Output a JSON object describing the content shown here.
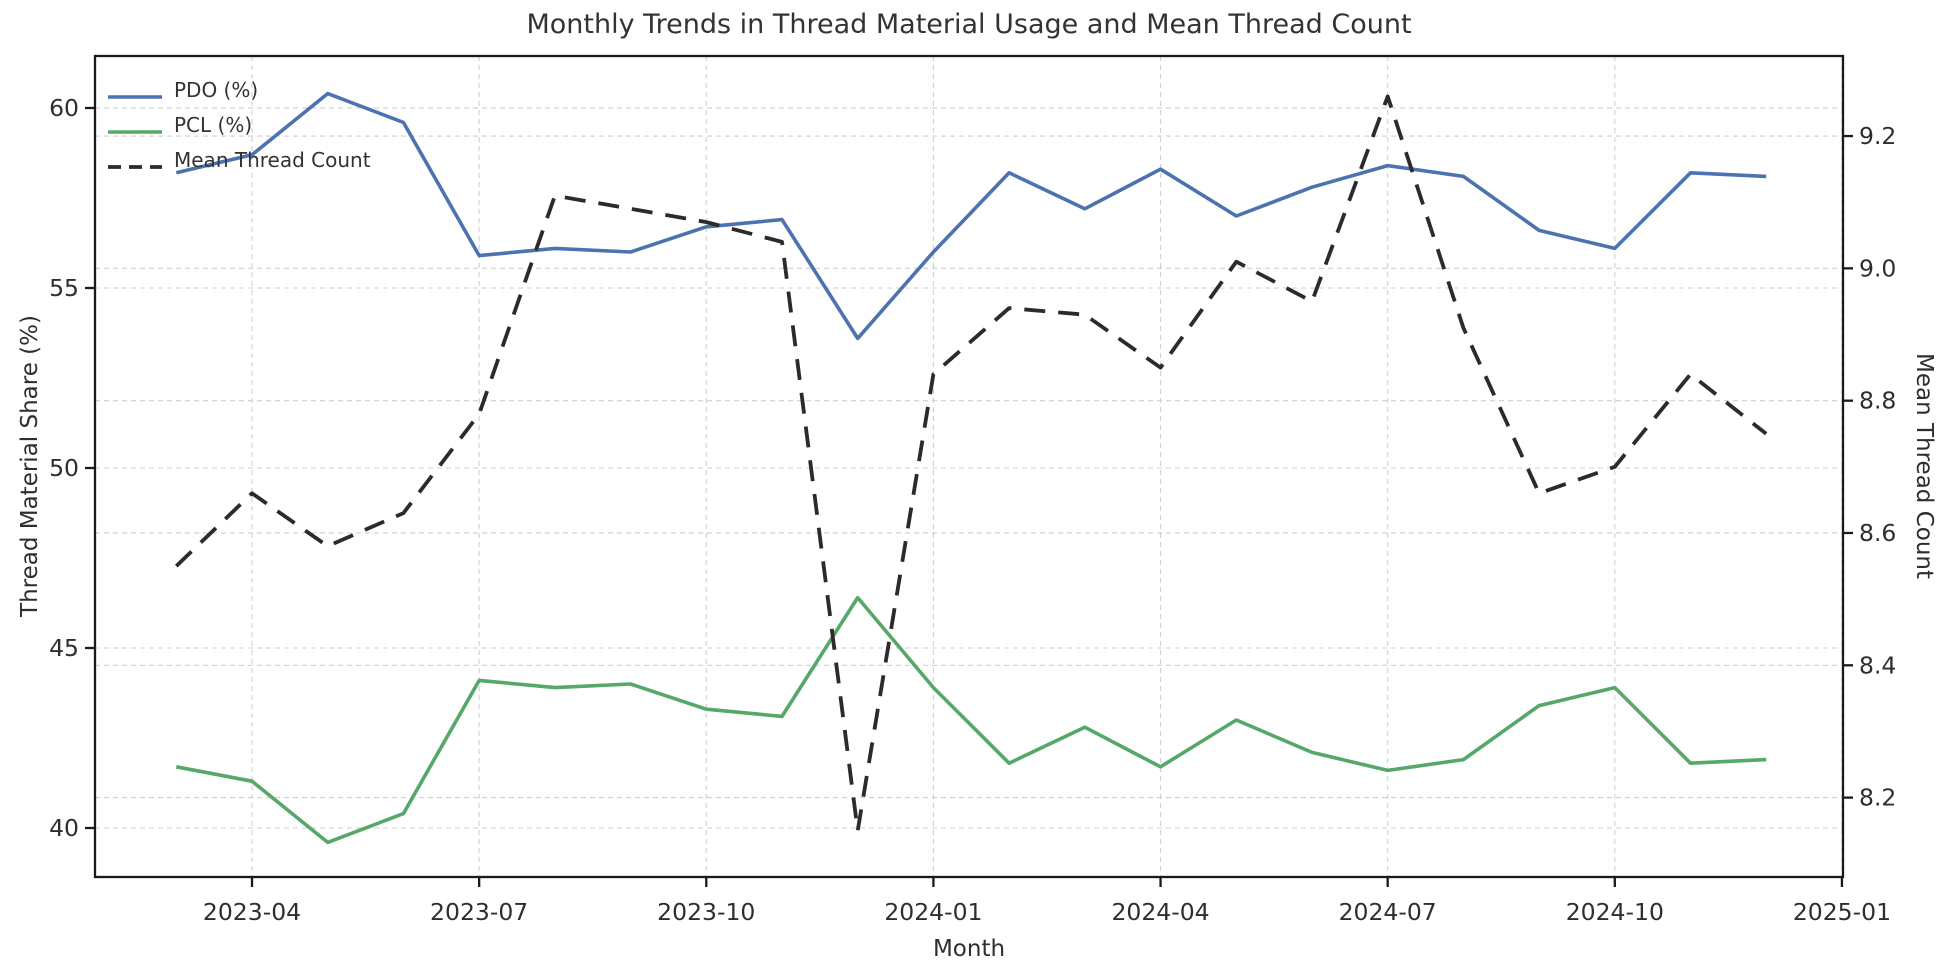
{
  "title": "Monthly Trends in Thread Material Usage and Mean Thread Count",
  "chart_data": {
    "type": "line",
    "title": "Monthly Trends in Thread Material Usage and Mean Thread Count",
    "xlabel": "Month",
    "ylabel_left": "Thread Material Share (%)",
    "ylabel_right": "Mean Thread Count",
    "x": [
      "2023-03",
      "2023-04",
      "2023-05",
      "2023-06",
      "2023-07",
      "2023-08",
      "2023-09",
      "2023-10",
      "2023-11",
      "2023-12",
      "2024-01",
      "2024-02",
      "2024-03",
      "2024-04",
      "2024-05",
      "2024-06",
      "2024-07",
      "2024-08",
      "2024-09",
      "2024-10",
      "2024-11",
      "2024-12"
    ],
    "series": [
      {
        "name": "PDO (%)",
        "axis": "left",
        "style": "solid",
        "color": "#4C72B0",
        "width": 3.6,
        "values": [
          58.2,
          58.7,
          60.4,
          59.6,
          55.9,
          56.1,
          56.0,
          56.7,
          56.9,
          53.6,
          56.0,
          58.2,
          57.2,
          58.3,
          57.0,
          57.8,
          58.4,
          58.1,
          56.6,
          56.1,
          58.2,
          58.1
        ]
      },
      {
        "name": "PCL (%)",
        "axis": "left",
        "style": "solid",
        "color": "#55A868",
        "width": 3.6,
        "values": [
          41.7,
          41.3,
          39.6,
          40.4,
          44.1,
          43.9,
          44.0,
          43.3,
          43.1,
          46.4,
          43.9,
          41.8,
          42.8,
          41.7,
          43.0,
          42.1,
          41.6,
          41.9,
          43.4,
          43.9,
          41.8,
          41.9
        ]
      },
      {
        "name": "Mean Thread Count",
        "axis": "right",
        "style": "dashed",
        "color": "#2b2b2b",
        "width": 3.8,
        "values": [
          8.55,
          8.66,
          8.58,
          8.63,
          8.78,
          9.11,
          9.09,
          9.07,
          9.04,
          8.15,
          8.84,
          8.94,
          8.93,
          8.85,
          9.01,
          8.95,
          9.26,
          8.91,
          8.66,
          8.7,
          8.84,
          8.75
        ]
      }
    ],
    "xticks": [
      {
        "index": 1,
        "label": "2023-04"
      },
      {
        "index": 4,
        "label": "2023-07"
      },
      {
        "index": 7,
        "label": "2023-10"
      },
      {
        "index": 10,
        "label": "2024-01"
      },
      {
        "index": 13,
        "label": "2024-04"
      },
      {
        "index": 16,
        "label": "2024-07"
      },
      {
        "index": 19,
        "label": "2024-10"
      },
      {
        "index": 22,
        "label": "2025-01"
      }
    ],
    "yticks_left": {
      "values": [
        40,
        45,
        50,
        55,
        60
      ],
      "labels": [
        "40",
        "45",
        "50",
        "55",
        "60"
      ]
    },
    "yticks_right": {
      "values": [
        8.2,
        8.4,
        8.6,
        8.8,
        9.0,
        9.2
      ],
      "labels": [
        "8.2",
        "8.4",
        "8.6",
        "8.8",
        "9.0",
        "9.2"
      ]
    },
    "x_index_range": [
      -1.074,
      22.014
    ],
    "ylim_left": [
      38.639,
      61.444
    ],
    "ylim_right": [
      8.08,
      9.321
    ],
    "grid": true,
    "legend_position": "top-left",
    "colors": {
      "grid": "#cfcfcf",
      "spine": "#1a1a1a",
      "tick_text": "#2e2e2e",
      "background": "#ffffff"
    }
  }
}
